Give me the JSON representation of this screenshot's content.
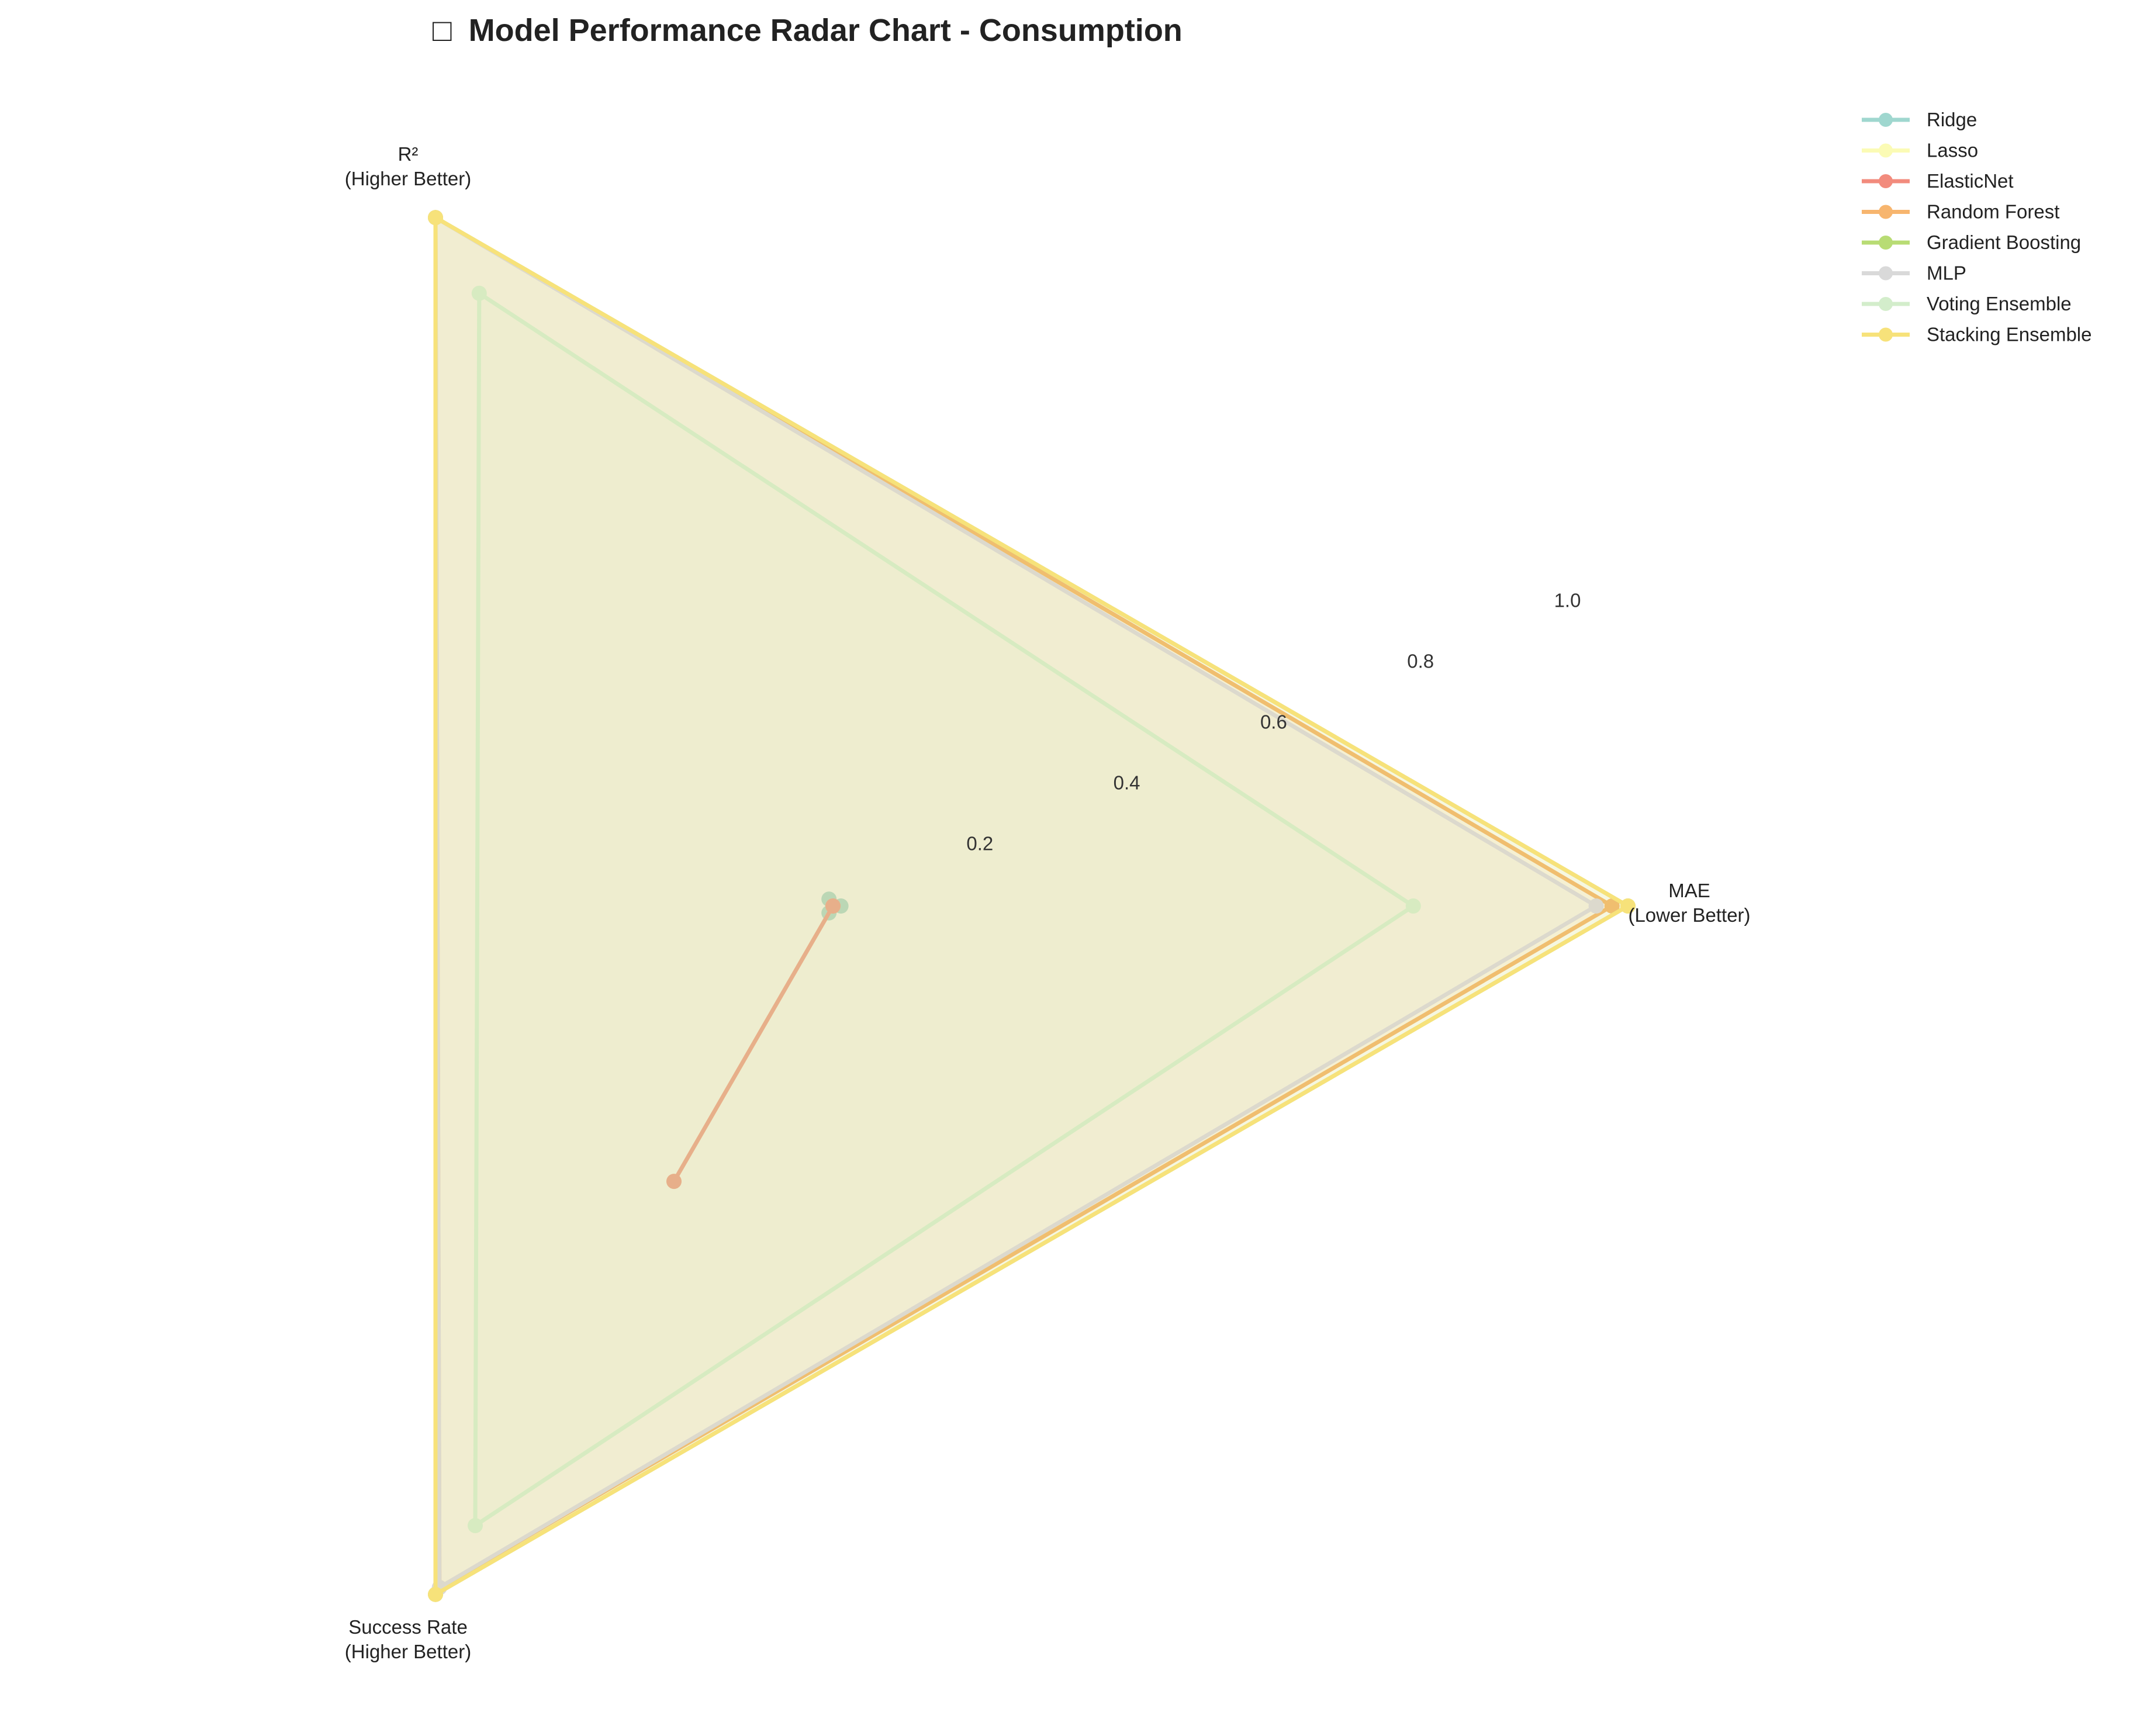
{
  "chart_data": {
    "type": "radar",
    "title": "Model Performance Radar Chart - Consumption",
    "title_icon": "□",
    "axes": [
      {
        "line1": "MAE",
        "line2": "(Lower Better)"
      },
      {
        "line1": "R²",
        "line2": "(Higher Better)"
      },
      {
        "line1": "Success Rate",
        "line2": "(Higher Better)"
      }
    ],
    "rlim": [
      0,
      1.0
    ],
    "rticks": [
      "0.2",
      "0.4",
      "0.6",
      "0.8",
      "1.0"
    ],
    "rtick_values": [
      0.2,
      0.4,
      0.6,
      0.8,
      1.0
    ],
    "grid": false,
    "legend_position": "top-right",
    "series": [
      {
        "name": "Ridge",
        "color": "#9fd7cf",
        "values": [
          0.01,
          0.01,
          0.01
        ]
      },
      {
        "name": "Lasso",
        "color": "#fbfbb5",
        "values": [
          0.0,
          0.0,
          0.4
        ]
      },
      {
        "name": "ElasticNet",
        "color": "#f28b7d",
        "values": [
          0.0,
          0.0,
          0.4
        ]
      },
      {
        "name": "Random Forest",
        "color": "#f7b56e",
        "values": [
          0.98,
          1.0,
          0.99
        ]
      },
      {
        "name": "Gradient Boosting",
        "color": "#b8dc74",
        "values": [
          1.0,
          1.0,
          1.0
        ]
      },
      {
        "name": "MLP",
        "color": "#d9d9d9",
        "values": [
          0.96,
          1.0,
          0.99
        ]
      },
      {
        "name": "Voting Ensemble",
        "color": "#d3edcb",
        "values": [
          0.73,
          0.89,
          0.9
        ]
      },
      {
        "name": "Stacking Ensemble",
        "color": "#f7e27a",
        "values": [
          1.0,
          1.0,
          1.0
        ]
      }
    ]
  }
}
